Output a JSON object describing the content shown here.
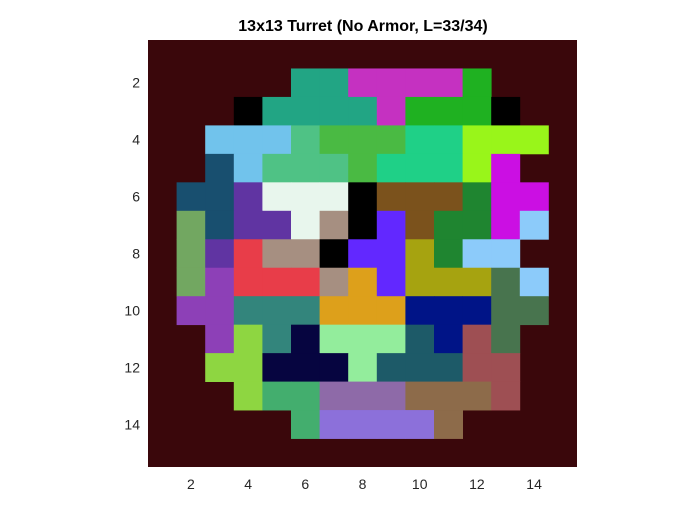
{
  "chart_data": {
    "type": "heatmap",
    "title": "13x13 Turret (No Armor, L=33/34)",
    "xlabel": "",
    "ylabel": "",
    "xlim": [
      0.5,
      15.5
    ],
    "ylim": [
      0.5,
      15.5
    ],
    "y_reversed": true,
    "grid": false,
    "legend": "none",
    "x_ticks": [
      2,
      4,
      6,
      8,
      10,
      12,
      14
    ],
    "y_ticks": [
      2,
      4,
      6,
      8,
      10,
      12,
      14
    ],
    "background_color": "#3a070b",
    "palette": {
      "A": "#22a584",
      "B": "#c531c1",
      "C": "#1fb121",
      "D": "#000000",
      "E": "#71c3ec",
      "F": "#4fc285",
      "G": "#4aba43",
      "H": "#1fd087",
      "I": "#99f51a",
      "J": "#184f6f",
      "K": "#cb0fe3",
      "L": "#6034a2",
      "M": "#e8f6ed",
      "N": "#7b521c",
      "O": "#72a761",
      "P": "#a68f81",
      "Q": "#6228ff",
      "R": "#1f8530",
      "S": "#8ccbfa",
      "T": "#e83d49",
      "U": "#a6a310",
      "V": "#8d40b7",
      "W": "#33857c",
      "X": "#dda01b",
      "Y": "#001487",
      "Z": "#48744e",
      "a": "#8ed641",
      "b": "#060540",
      "c": "#93ed9c",
      "d": "#1d5a68",
      "e": "#9e4f53",
      "f": "#43ae6e",
      "g": "#8e6aa8",
      "h": "#8d6b4a",
      "i": "#8c70da"
    },
    "grid_rows": [
      ".....AABBBBC...",
      "...DAAAABCCCD..",
      "..EEEFGGGHHIII.",
      "..JEFFFGHHHIK..",
      ".JJLMMMDNNNRKK.",
      ".OJLLMPDQNRRKS.",
      ".OLTPPDQQURSS..",
      ".OVTTTPXQUUUZS.",
      ".VVWWWXXXYYYZZ.",
      "..VaWbcccdYeZ..",
      "..aabbbcdddee..",
      "...affggghhhe..",
      ".....fiiiih...."
    ],
    "grid_row_start": 2,
    "grid_col_start": 1
  }
}
